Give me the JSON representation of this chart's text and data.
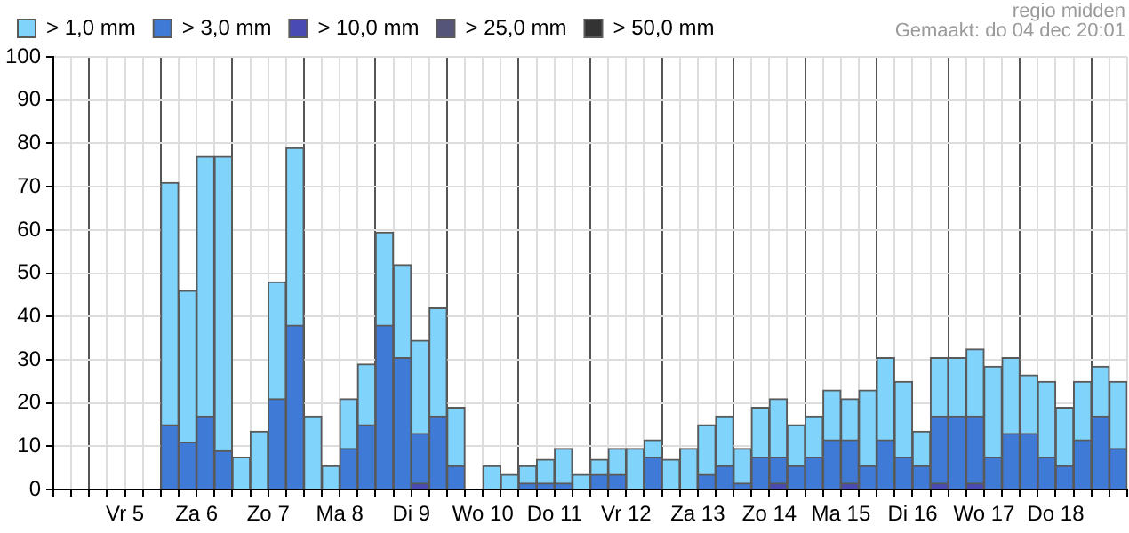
{
  "chart_data": {
    "type": "bar",
    "annotations": [
      "regio midden",
      "Gemaakt: do 04 dec 20:01"
    ],
    "categories": [
      null,
      null,
      null,
      null,
      "Vr 5",
      null,
      null,
      null,
      "Za 6",
      null,
      null,
      null,
      "Zo 7",
      null,
      null,
      null,
      "Ma 8",
      null,
      null,
      null,
      "Di 9",
      null,
      null,
      null,
      "Wo 10",
      null,
      null,
      null,
      "Do 11",
      null,
      null,
      null,
      "Vr 12",
      null,
      null,
      null,
      "Za 13",
      null,
      null,
      null,
      "Zo 14",
      null,
      null,
      null,
      "Ma 15",
      null,
      null,
      null,
      "Di 16",
      null,
      null,
      null,
      "Wo 17",
      null,
      null,
      null,
      "Do 18",
      null,
      null,
      null
    ],
    "stacked": true,
    "series": [
      {
        "name": "> 50,0 mm",
        "color": "#333333",
        "values": [
          0,
          0,
          0,
          0,
          0,
          0,
          0,
          0,
          0,
          0,
          0,
          0,
          0,
          0,
          0,
          0,
          0,
          0,
          0,
          0,
          0,
          0,
          0,
          0,
          0,
          0,
          0,
          0,
          0,
          0,
          0,
          0,
          0,
          0,
          0,
          0,
          0,
          0,
          0,
          0,
          0,
          0,
          0,
          0,
          0,
          0,
          0,
          0,
          0,
          0,
          0,
          0,
          0,
          0,
          0,
          0,
          0,
          0,
          0,
          0
        ]
      },
      {
        "name": "> 25,0 mm",
        "color": "#55557a",
        "values": [
          0,
          0,
          0,
          0,
          0,
          0,
          0,
          0,
          0,
          0,
          0,
          0,
          0,
          0,
          0,
          0,
          0,
          0,
          0,
          0,
          0,
          0,
          0,
          0,
          0,
          0,
          0,
          0,
          0,
          0,
          0,
          0,
          0,
          0,
          0,
          0,
          0,
          0,
          0,
          0,
          0,
          0,
          0,
          0,
          0,
          0,
          0,
          0,
          0,
          0,
          0,
          0,
          0,
          0,
          0,
          0,
          0,
          0,
          0,
          0
        ]
      },
      {
        "name": "> 10,0 mm",
        "color": "#4a4ab4",
        "values": [
          0,
          0,
          0,
          0,
          0,
          0,
          0,
          0,
          0,
          0,
          0,
          0,
          0,
          0,
          0,
          0,
          0,
          0,
          0,
          0,
          1.5,
          0,
          0,
          0,
          0,
          0,
          0,
          0,
          0,
          0,
          0,
          0,
          0,
          0,
          0,
          0,
          0,
          0,
          0,
          0,
          1.5,
          0,
          0,
          0,
          1.5,
          0,
          0,
          0,
          0,
          1.5,
          0,
          1.5,
          0,
          0,
          0,
          0,
          0,
          0,
          0,
          0
        ]
      },
      {
        "name": "> 3,0 mm",
        "color": "#3f7ad6",
        "values": [
          0,
          0,
          0,
          0,
          0,
          0,
          15,
          11,
          17,
          9,
          0,
          0,
          21,
          38,
          0,
          0,
          9.5,
          15,
          38,
          30.5,
          11.5,
          17,
          5.5,
          0,
          0,
          0,
          1.5,
          1.5,
          1.5,
          0,
          3.5,
          3.5,
          0,
          7.5,
          0,
          0,
          3.5,
          5.5,
          1.5,
          7.5,
          6,
          5.5,
          7.5,
          11.5,
          10,
          5.5,
          11.5,
          7.5,
          5.5,
          15.5,
          17,
          15.5,
          7.5,
          13,
          13,
          7.5,
          5.5,
          11.5,
          17,
          9.5
        ]
      },
      {
        "name": "> 1,0 mm",
        "color": "#80d4fc",
        "values": [
          0,
          0,
          0,
          0,
          0,
          0,
          56,
          35,
          60,
          68,
          7.5,
          13.5,
          27,
          41,
          17,
          5.5,
          11.5,
          14,
          21.5,
          21.5,
          21.5,
          25,
          13.5,
          0,
          5.5,
          3.5,
          4,
          5.5,
          8,
          3.5,
          3.5,
          6,
          9.5,
          4,
          7,
          9.5,
          11.5,
          11.5,
          8,
          11.5,
          13.5,
          9.5,
          9.5,
          11.5,
          9.5,
          17.5,
          19,
          17.5,
          8,
          13.5,
          13.5,
          15.5,
          21,
          17.5,
          13.5,
          17.5,
          13.5,
          13.5,
          11.5,
          15.5
        ]
      }
    ],
    "ylim": [
      0,
      100
    ],
    "yticks": [
      0,
      10,
      20,
      30,
      40,
      50,
      60,
      70,
      80,
      90,
      100
    ],
    "grid": true,
    "legend": "top left"
  }
}
